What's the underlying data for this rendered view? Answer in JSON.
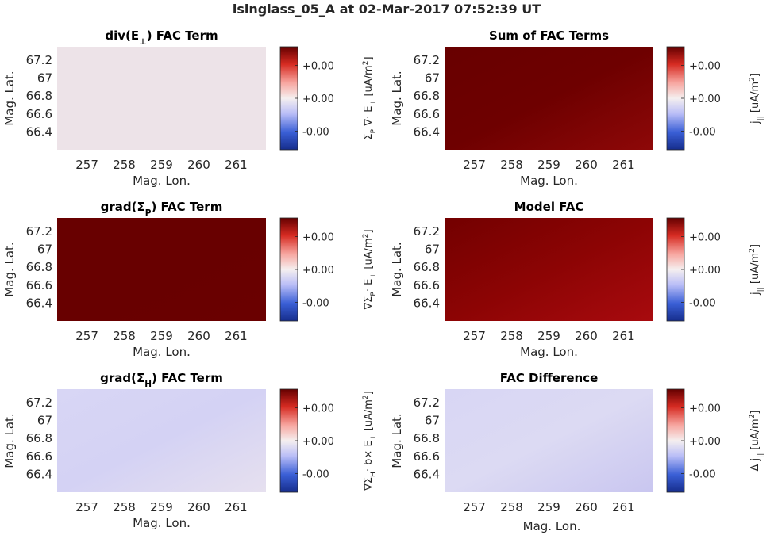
{
  "figure_title": "isinglass_05_A at 02-Mar-2017 07:52:39 UT",
  "chart_data": [
    {
      "type": "heatmap",
      "title": "div(E⊥) FAC Term",
      "title_parts": [
        [
          "div(E",
          "normal"
        ],
        [
          "⊥",
          "sub"
        ],
        [
          ") FAC Term",
          "normal"
        ]
      ],
      "xlabel": "Mag. Lon.",
      "ylabel": "Mag. Lat.",
      "x_ticks": [
        "257",
        "258",
        "259",
        "260",
        "261"
      ],
      "y_ticks": [
        "67.2",
        "67",
        "66.8",
        "66.6",
        "66.4"
      ],
      "xlim": [
        256.2,
        261.8
      ],
      "ylim": [
        66.2,
        67.35
      ],
      "colorbar_ticks": [
        "+0.00",
        "+0.00",
        "-0.00"
      ],
      "colorbar_label": "Σ_P ∇· E_⊥ [uA/m^2]",
      "colorbar_label_parts": [
        [
          "Σ",
          "normal"
        ],
        [
          "P",
          "sub"
        ],
        [
          " ∇· E",
          "normal"
        ],
        [
          "⊥",
          "sub"
        ],
        [
          " [uA/m",
          "normal"
        ],
        [
          "2",
          "sup"
        ],
        [
          "]",
          "normal"
        ]
      ],
      "fill_colors": [
        "#ede3e8",
        "#ede3e8",
        "#ede3e8"
      ]
    },
    {
      "type": "heatmap",
      "title": "Sum of FAC Terms",
      "title_parts": [
        [
          "Sum of FAC Terms",
          "normal"
        ]
      ],
      "xlabel": "Mag. Lon.",
      "ylabel": "Mag. Lat.",
      "x_ticks": [
        "257",
        "258",
        "259",
        "260",
        "261"
      ],
      "y_ticks": [
        "67.2",
        "67",
        "66.8",
        "66.6",
        "66.4"
      ],
      "xlim": [
        256.2,
        261.8
      ],
      "ylim": [
        66.2,
        67.35
      ],
      "colorbar_ticks": [
        "+0.00",
        "+0.00",
        "-0.00"
      ],
      "colorbar_label": "j_|| [uA/m^2]",
      "colorbar_label_parts": [
        [
          "j",
          "normal"
        ],
        [
          "||",
          "sub"
        ],
        [
          " [uA/m",
          "normal"
        ],
        [
          "2",
          "sup"
        ],
        [
          "]",
          "normal"
        ]
      ],
      "fill_colors": [
        "#680000",
        "#6e0000",
        "#8e0808"
      ]
    },
    {
      "type": "heatmap",
      "title": "grad(ΣP) FAC Term",
      "title_parts": [
        [
          "grad(Σ",
          "normal"
        ],
        [
          "P",
          "sub"
        ],
        [
          ") FAC Term",
          "normal"
        ]
      ],
      "xlabel": "Mag. Lon.",
      "ylabel": "Mag. Lat.",
      "x_ticks": [
        "257",
        "258",
        "259",
        "260",
        "261"
      ],
      "y_ticks": [
        "67.2",
        "67",
        "66.8",
        "66.6",
        "66.4"
      ],
      "xlim": [
        256.2,
        261.8
      ],
      "ylim": [
        66.2,
        67.35
      ],
      "colorbar_ticks": [
        "+0.00",
        "+0.00",
        "-0.00"
      ],
      "colorbar_label": "∇Σ_P· E_⊥ [uA/m^2]",
      "colorbar_label_parts": [
        [
          "∇Σ",
          "normal"
        ],
        [
          "P",
          "sub"
        ],
        [
          "· E",
          "normal"
        ],
        [
          "⊥",
          "sub"
        ],
        [
          " [uA/m",
          "normal"
        ],
        [
          "2",
          "sup"
        ],
        [
          "]",
          "normal"
        ]
      ],
      "fill_colors": [
        "#680000",
        "#680000",
        "#6a0000"
      ]
    },
    {
      "type": "heatmap",
      "title": "Model FAC",
      "title_parts": [
        [
          "Model FAC",
          "normal"
        ]
      ],
      "xlabel": "Mag. Lon.",
      "ylabel": "Mag. Lat.",
      "x_ticks": [
        "257",
        "258",
        "259",
        "260",
        "261"
      ],
      "y_ticks": [
        "67.2",
        "67",
        "66.8",
        "66.6",
        "66.4"
      ],
      "xlim": [
        256.2,
        261.8
      ],
      "ylim": [
        66.2,
        67.35
      ],
      "colorbar_ticks": [
        "+0.00",
        "+0.00",
        "-0.00"
      ],
      "colorbar_label": "j_|| [uA/m^2]",
      "colorbar_label_parts": [
        [
          "j",
          "normal"
        ],
        [
          "||",
          "sub"
        ],
        [
          " [uA/m",
          "normal"
        ],
        [
          "2",
          "sup"
        ],
        [
          "]",
          "normal"
        ]
      ],
      "fill_colors": [
        "#730000",
        "#8c0404",
        "#a80a0e"
      ]
    },
    {
      "type": "heatmap",
      "title": "grad(ΣH) FAC Term",
      "title_parts": [
        [
          "grad(Σ",
          "normal"
        ],
        [
          "H",
          "sub"
        ],
        [
          ") FAC Term",
          "normal"
        ]
      ],
      "xlabel": "Mag. Lon.",
      "ylabel": "Mag. Lat.",
      "x_ticks": [
        "257",
        "258",
        "259",
        "260",
        "261"
      ],
      "y_ticks": [
        "67.2",
        "67",
        "66.8",
        "66.6",
        "66.4"
      ],
      "xlim": [
        256.2,
        261.8
      ],
      "ylim": [
        66.2,
        67.35
      ],
      "colorbar_ticks": [
        "+0.00",
        "+0.00",
        "-0.00"
      ],
      "colorbar_label": "∇Σ_H· b× E_⊥ [uA/m^2]",
      "colorbar_label_parts": [
        [
          "∇Σ",
          "normal"
        ],
        [
          "H",
          "sub"
        ],
        [
          "· b× E",
          "normal"
        ],
        [
          "⊥",
          "sub"
        ],
        [
          " [uA/m",
          "normal"
        ],
        [
          "2",
          "sup"
        ],
        [
          "]",
          "normal"
        ]
      ],
      "fill_colors": [
        "#d8d6f5",
        "#d4d2f4",
        "#e6e0ef"
      ]
    },
    {
      "type": "heatmap",
      "title": "FAC Difference",
      "title_parts": [
        [
          "FAC Difference",
          "normal"
        ]
      ],
      "xlabel": "",
      "ylabel": "Mag. Lat.",
      "x_ticks": [
        "257",
        "258",
        "259",
        "260",
        "261"
      ],
      "y_ticks": [
        "67.2",
        "67",
        "66.8",
        "66.6",
        "66.4"
      ],
      "xlim": [
        256.2,
        261.8
      ],
      "ylim": [
        66.2,
        67.35
      ],
      "colorbar_ticks": [
        "+0.00",
        "+0.00",
        "-0.00"
      ],
      "colorbar_label": "Δ j_|| [uA/m^2]",
      "colorbar_label_parts": [
        [
          "Δ j",
          "normal"
        ],
        [
          "||",
          "sub"
        ],
        [
          " [uA/m",
          "normal"
        ],
        [
          "2",
          "sup"
        ],
        [
          "]",
          "normal"
        ]
      ],
      "fill_colors": [
        "#d8d6f4",
        "#dcdaf3",
        "#c9c6f0"
      ]
    }
  ],
  "bottom_xlabel": "Mag. Lon.",
  "colormap": [
    "#162d8c",
    "#3a5fd6",
    "#b9bdf7",
    "#f5efef",
    "#f7a6a0",
    "#d62b22",
    "#650000"
  ]
}
